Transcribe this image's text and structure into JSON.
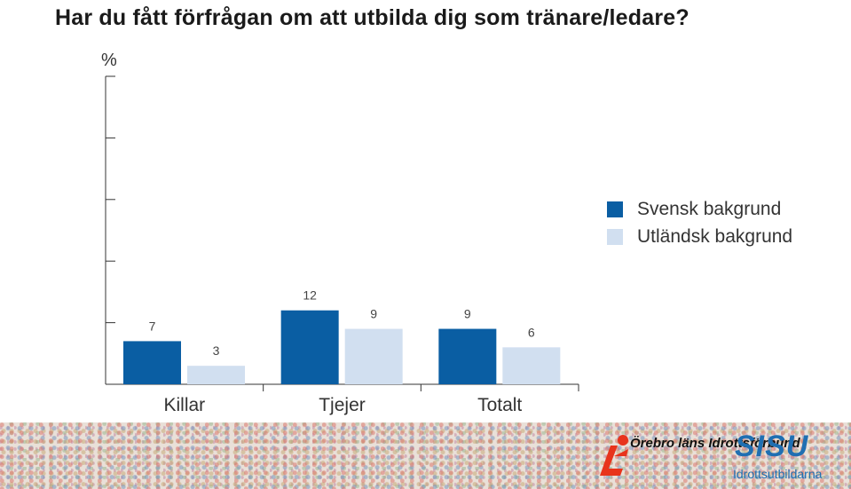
{
  "chart_data": {
    "type": "bar",
    "title": "Har du fått förfrågan om att utbilda dig som tränare/ledare?",
    "ylabel": "%",
    "ylim": [
      0,
      50
    ],
    "categories": [
      "Killar",
      "Tjejer",
      "Totalt"
    ],
    "series": [
      {
        "name": "Svensk bakgrund",
        "values": [
          7,
          12,
          9
        ],
        "color": "#0a5ea3"
      },
      {
        "name": "Utländsk bakgrund",
        "values": [
          3,
          9,
          6
        ],
        "color": "#d1dff0"
      }
    ],
    "legend_position": "right",
    "grid": false
  },
  "footer": {
    "logo_lif": "Örebro läns Idrottsförbund",
    "logo_sisu_main": "SISU",
    "logo_sisu_sub": "Idrottsutbildarna"
  }
}
